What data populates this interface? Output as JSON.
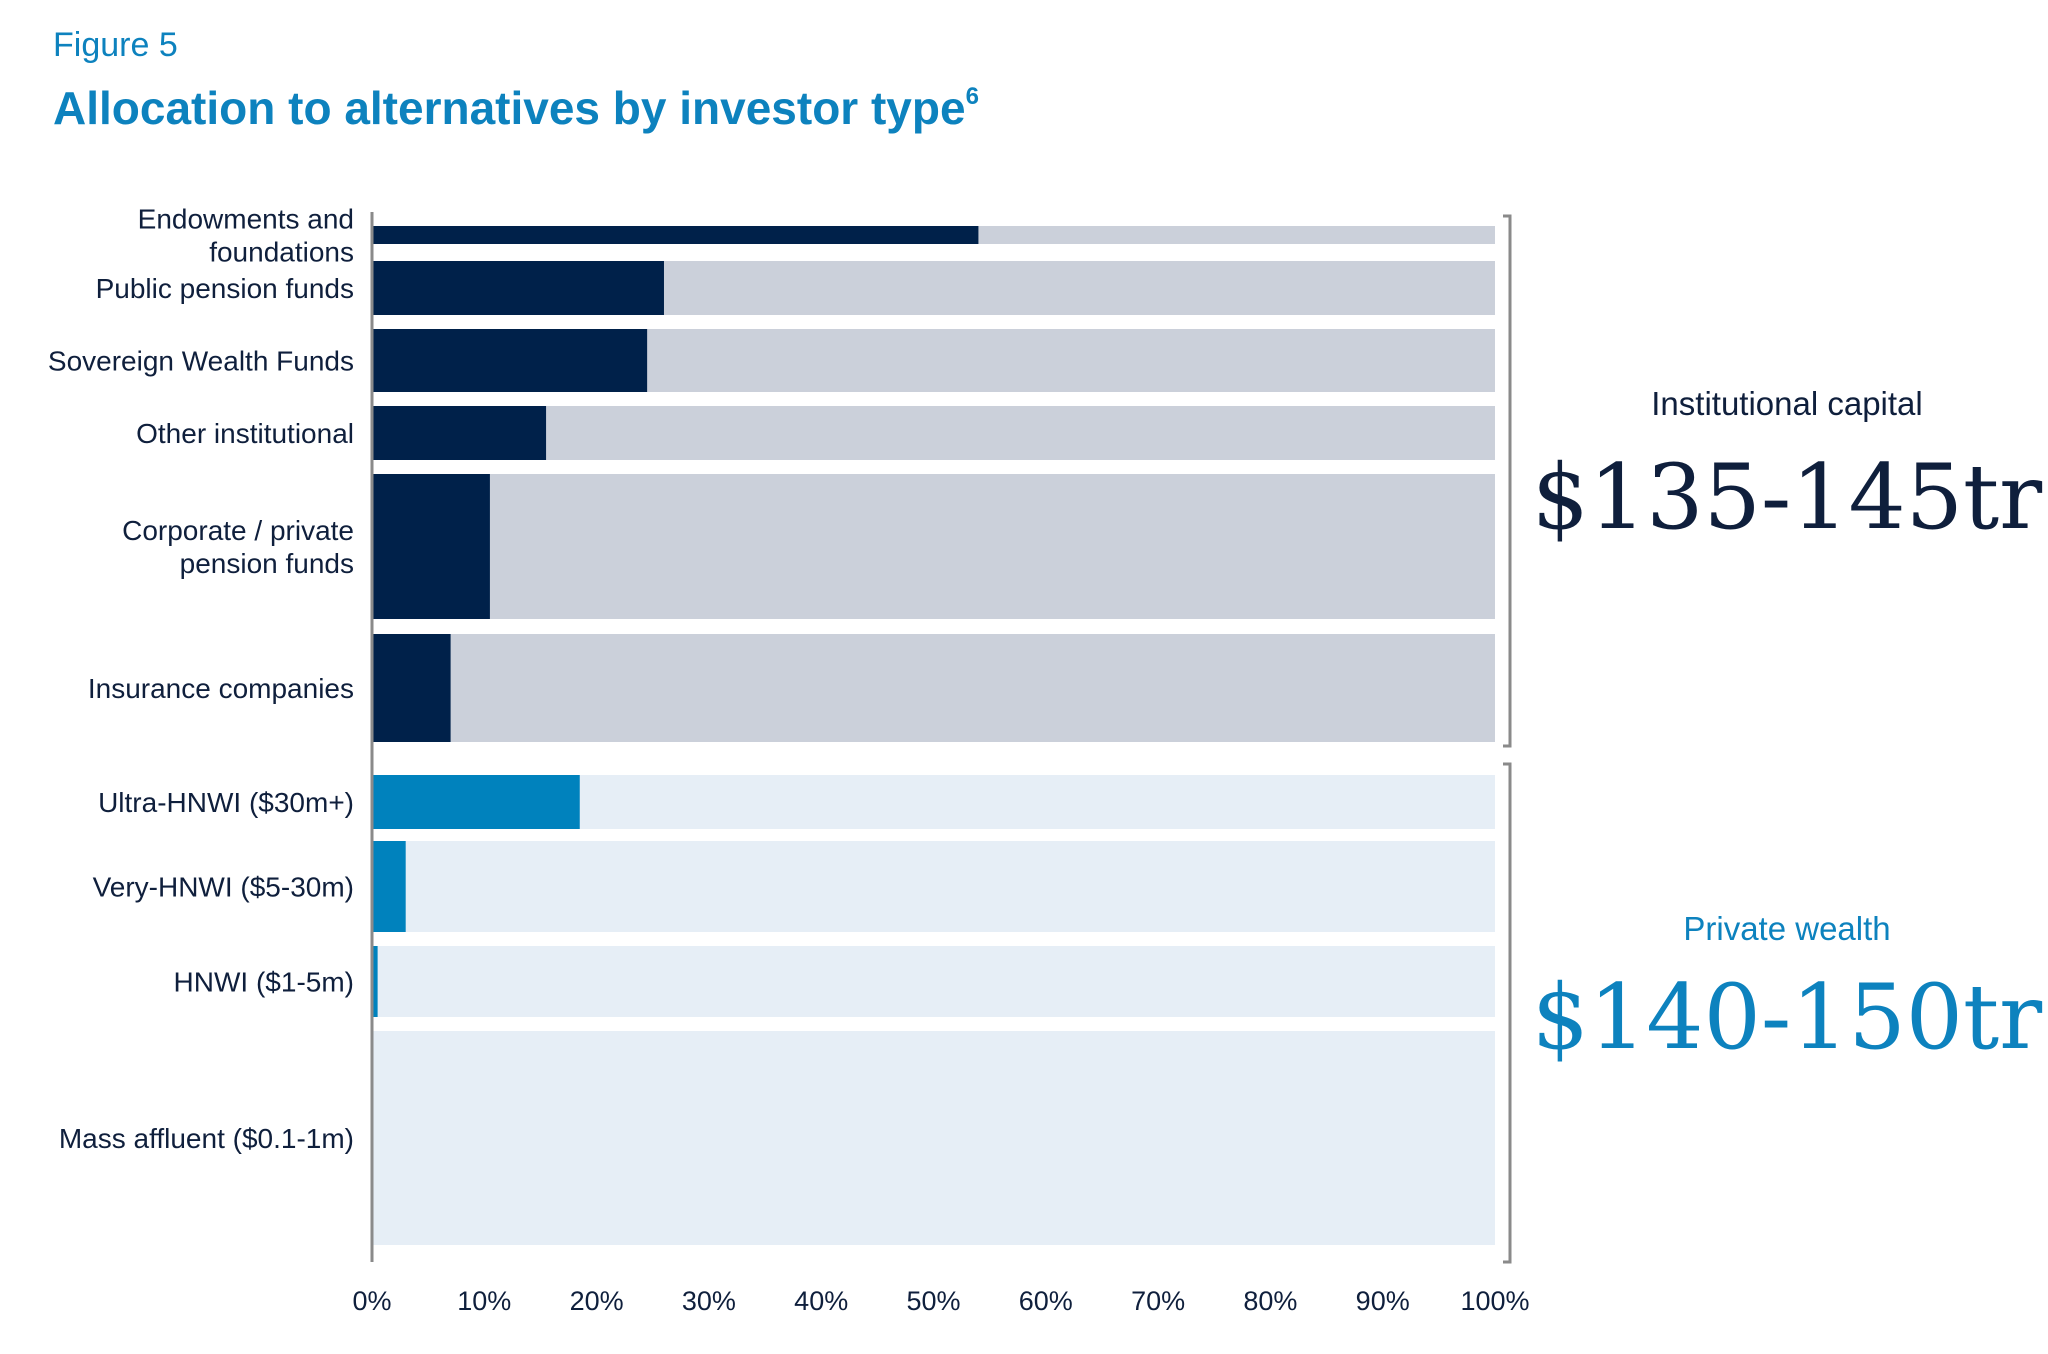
{
  "figure_label": "Figure 5",
  "title": "Allocation to alternatives by investor type",
  "title_superscript": "6",
  "colors": {
    "institutional_bar": "#00214a",
    "institutional_bg": "#cbd0da",
    "private_bar": "#0082bd",
    "private_bg": "#e6eef6",
    "text_dark": "#0f1f3c",
    "accent": "#0d82be",
    "axis": "#8a8a8a"
  },
  "groups": [
    {
      "label": "Institutional capital",
      "value": "$135-145tr",
      "color": "#0f1f3c"
    },
    {
      "label": "Private wealth",
      "value": "$140-150tr",
      "color": "#0d82be"
    }
  ],
  "chart_data": {
    "type": "bar",
    "orientation": "horizontal",
    "stacked": true,
    "title": "Allocation to alternatives by investor type",
    "xlabel": "",
    "ylabel": "",
    "xlim": [
      0,
      100
    ],
    "x_ticks": [
      "0%",
      "10%",
      "20%",
      "30%",
      "40%",
      "50%",
      "60%",
      "70%",
      "80%",
      "90%",
      "100%"
    ],
    "grid": false,
    "legend": "none",
    "categories": [
      {
        "label": [
          "Endowments and",
          "foundations"
        ],
        "value": 54,
        "group": "Institutional capital"
      },
      {
        "label": [
          "Public pension funds"
        ],
        "value": 26,
        "group": "Institutional capital"
      },
      {
        "label": [
          "Sovereign Wealth Funds"
        ],
        "value": 24.5,
        "group": "Institutional capital"
      },
      {
        "label": [
          "Other institutional"
        ],
        "value": 15.5,
        "group": "Institutional capital"
      },
      {
        "label": [
          "Corporate / private",
          "pension funds"
        ],
        "value": 10.5,
        "group": "Institutional capital"
      },
      {
        "label": [
          "Insurance companies"
        ],
        "value": 7,
        "group": "Institutional capital"
      },
      {
        "label": [
          "Ultra-HNWI ($30m+)"
        ],
        "value": 18.5,
        "group": "Private wealth"
      },
      {
        "label": [
          "Very-HNWI ($5-30m)"
        ],
        "value": 3,
        "group": "Private wealth"
      },
      {
        "label": [
          "HNWI ($1-5m)"
        ],
        "value": 0.5,
        "group": "Private wealth"
      },
      {
        "label": [
          "Mass affluent ($0.1-1m)"
        ],
        "value": 0,
        "group": "Private wealth"
      }
    ]
  }
}
